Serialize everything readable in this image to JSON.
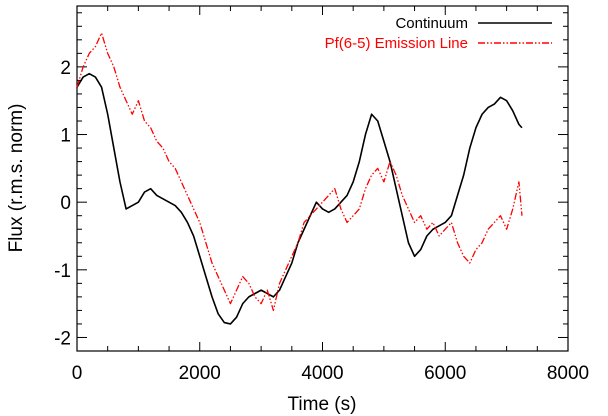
{
  "chart_data": {
    "type": "line",
    "xlabel": "Time  (s)",
    "ylabel": "Flux  (r.m.s. norm)",
    "xlim": [
      0,
      8000
    ],
    "ylim": [
      -2.2,
      2.9
    ],
    "x_ticks": [
      0,
      2000,
      4000,
      6000,
      8000
    ],
    "y_ticks": [
      -2,
      -1,
      0,
      1,
      2
    ],
    "grid": false,
    "legend_position": "top-right",
    "series": [
      {
        "name": "Continuum",
        "color": "#000000",
        "style": "solid",
        "x": [
          0,
          100,
          200,
          300,
          400,
          500,
          600,
          700,
          800,
          900,
          1000,
          1100,
          1200,
          1300,
          1400,
          1500,
          1600,
          1700,
          1800,
          1900,
          2000,
          2100,
          2200,
          2300,
          2400,
          2500,
          2600,
          2700,
          2800,
          2900,
          3000,
          3100,
          3200,
          3300,
          3400,
          3500,
          3600,
          3700,
          3800,
          3900,
          4000,
          4100,
          4200,
          4300,
          4400,
          4500,
          4600,
          4700,
          4800,
          4900,
          5000,
          5100,
          5200,
          5300,
          5400,
          5500,
          5600,
          5700,
          5800,
          5900,
          6000,
          6100,
          6200,
          6300,
          6400,
          6500,
          6600,
          6700,
          6800,
          6900,
          7000,
          7100,
          7200,
          7250
        ],
        "y": [
          1.7,
          1.85,
          1.9,
          1.85,
          1.7,
          1.3,
          0.8,
          0.3,
          -0.1,
          -0.05,
          0.0,
          0.15,
          0.2,
          0.1,
          0.05,
          0.0,
          -0.05,
          -0.15,
          -0.3,
          -0.5,
          -0.8,
          -1.1,
          -1.4,
          -1.65,
          -1.78,
          -1.8,
          -1.7,
          -1.5,
          -1.4,
          -1.35,
          -1.3,
          -1.35,
          -1.4,
          -1.3,
          -1.1,
          -0.9,
          -0.6,
          -0.4,
          -0.2,
          0.0,
          -0.1,
          -0.15,
          -0.1,
          0.0,
          0.1,
          0.3,
          0.6,
          1.0,
          1.3,
          1.2,
          0.9,
          0.6,
          0.2,
          -0.2,
          -0.6,
          -0.8,
          -0.7,
          -0.5,
          -0.4,
          -0.35,
          -0.3,
          -0.2,
          0.1,
          0.4,
          0.8,
          1.1,
          1.3,
          1.4,
          1.45,
          1.55,
          1.5,
          1.35,
          1.15,
          1.1
        ]
      },
      {
        "name": "Pf(6-5) Emission Line",
        "color": "#ff0000",
        "style": "dash-dot-dot",
        "x": [
          0,
          100,
          200,
          300,
          400,
          500,
          600,
          700,
          800,
          900,
          1000,
          1100,
          1200,
          1300,
          1400,
          1500,
          1600,
          1700,
          1800,
          1900,
          2000,
          2100,
          2200,
          2300,
          2400,
          2500,
          2600,
          2700,
          2800,
          2900,
          3000,
          3100,
          3200,
          3300,
          3400,
          3500,
          3600,
          3700,
          3800,
          3900,
          4000,
          4100,
          4200,
          4300,
          4400,
          4500,
          4600,
          4700,
          4800,
          4900,
          5000,
          5100,
          5200,
          5300,
          5400,
          5500,
          5600,
          5700,
          5800,
          5900,
          6000,
          6100,
          6200,
          6300,
          6400,
          6500,
          6600,
          6700,
          6800,
          6900,
          7000,
          7100,
          7200,
          7250
        ],
        "y": [
          1.7,
          2.0,
          2.2,
          2.3,
          2.5,
          2.2,
          2.0,
          1.7,
          1.5,
          1.3,
          1.5,
          1.2,
          1.1,
          0.9,
          0.8,
          0.6,
          0.5,
          0.3,
          0.1,
          -0.1,
          -0.3,
          -0.6,
          -0.9,
          -1.1,
          -1.3,
          -1.5,
          -1.3,
          -1.1,
          -1.2,
          -1.4,
          -1.5,
          -1.3,
          -1.6,
          -1.2,
          -1.0,
          -0.8,
          -0.6,
          -0.3,
          -0.2,
          -0.1,
          0.0,
          0.1,
          0.2,
          -0.1,
          -0.3,
          -0.2,
          -0.1,
          0.2,
          0.4,
          0.5,
          0.3,
          0.6,
          0.4,
          0.1,
          -0.1,
          -0.3,
          -0.2,
          -0.4,
          -0.3,
          -0.5,
          -0.4,
          -0.3,
          -0.6,
          -0.8,
          -0.9,
          -0.7,
          -0.6,
          -0.4,
          -0.3,
          -0.2,
          -0.4,
          -0.1,
          0.3,
          -0.2
        ]
      }
    ]
  }
}
